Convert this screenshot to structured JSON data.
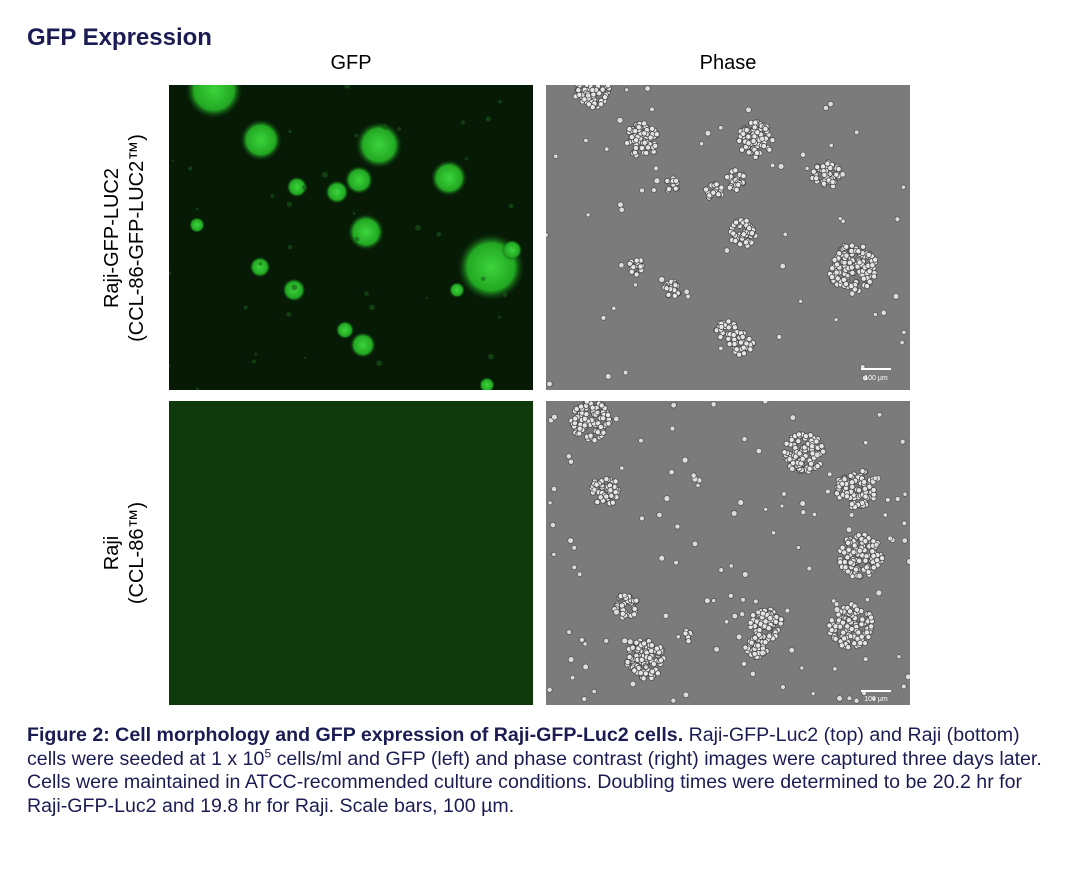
{
  "title": "GFP Expression",
  "columns": [
    "GFP",
    "Phase"
  ],
  "rows": [
    {
      "label": [
        "Raji-GFP-LUC2",
        "(CCL-86-GFP-LUC2™)"
      ],
      "scale_bar": "100 µm"
    },
    {
      "label": [
        "Raji",
        "(CCL-86™)"
      ],
      "scale_bar": "100 µm"
    }
  ],
  "caption": {
    "bold": "Figure 2: Cell morphology and GFP expression of Raji-GFP-Luc2 cells.",
    "text_before": " Raji-GFP-Luc2 (top) and Raji (bottom) cells were seeded at 1 x 10",
    "superscript": "5",
    "text_after": " cells/ml and GFP (left) and phase contrast (right) images were captured three days later. Cells were maintained in ATCC-recommended culture conditions. Doubling times were determined to be 20.2 hr for Raji-GFP-Luc2 and 19.8 hr for Raji. Scale bars, 100 µm."
  }
}
